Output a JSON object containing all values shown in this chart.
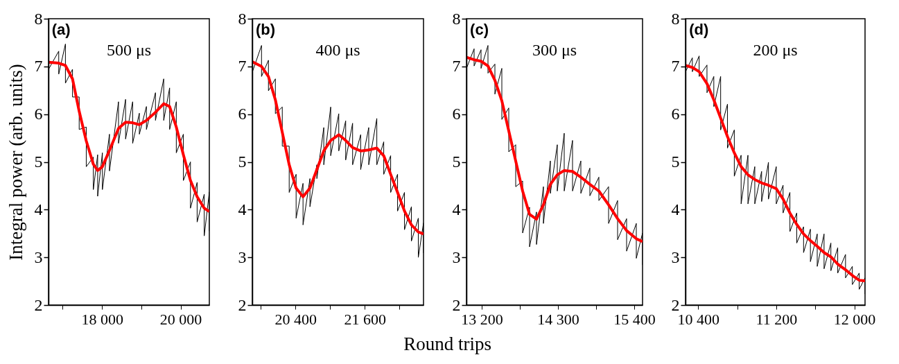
{
  "chart_data": [
    {
      "type": "line",
      "ylabel": "Integral power (arb. units)",
      "annotations": [
        "(a)",
        "500 μs"
      ],
      "xlim": [
        16640,
        20730
      ],
      "ylim": [
        2,
        8
      ],
      "xticks": [
        {
          "value": 17000,
          "label": null
        },
        {
          "value": 18000,
          "label": "18 000"
        },
        {
          "value": 19000,
          "label": null
        },
        {
          "value": 20000,
          "label": "20 000"
        }
      ],
      "yticks": [
        2,
        3,
        4,
        5,
        6,
        7,
        8
      ],
      "series": [
        {
          "color": "#000000",
          "x": [
            16640,
            16640,
            16900,
            16900,
            17070,
            17070,
            17250,
            17250,
            17420,
            17420,
            17600,
            17600,
            17780,
            17780,
            17890,
            17890,
            18010,
            18010,
            18190,
            18190,
            18420,
            18420,
            18600,
            18600,
            18780,
            18780,
            18950,
            18950,
            19130,
            19130,
            19360,
            19360,
            19570,
            19570,
            19720,
            19720,
            19890,
            19890,
            20070,
            20070,
            20250,
            20250,
            20420,
            20420,
            20600,
            20600,
            20730,
            20730
          ],
          "values": [
            7.2,
            6.94,
            7.32,
            6.84,
            7.47,
            6.65,
            6.94,
            6.36,
            6.36,
            5.68,
            5.73,
            4.9,
            5.1,
            4.42,
            5.15,
            4.28,
            5.19,
            4.42,
            5.58,
            4.81,
            6.26,
            5.39,
            6.31,
            5.48,
            6.26,
            5.39,
            6.02,
            5.58,
            6.16,
            5.68,
            6.45,
            5.87,
            6.74,
            5.87,
            6.55,
            5.68,
            6.26,
            5.19,
            5.58,
            4.61,
            5.0,
            4.03,
            4.57,
            3.74,
            4.32,
            3.45,
            4.37,
            3.55
          ]
        },
        {
          "color": "#ff0000",
          "x": [
            16640,
            16900,
            17070,
            17250,
            17420,
            17600,
            17780,
            17890,
            18010,
            18190,
            18420,
            18600,
            18780,
            18950,
            19130,
            19360,
            19570,
            19720,
            19890,
            20070,
            20250,
            20420,
            20600,
            20730
          ],
          "values": [
            7.09,
            7.07,
            7.02,
            6.74,
            6.06,
            5.44,
            4.95,
            4.82,
            4.9,
            5.24,
            5.7,
            5.83,
            5.82,
            5.78,
            5.87,
            6.04,
            6.22,
            6.16,
            5.73,
            5.15,
            4.61,
            4.27,
            4.03,
            3.96
          ]
        }
      ]
    },
    {
      "type": "line",
      "xlabel": "Round trips",
      "annotations": [
        "(b)",
        "400 μs"
      ],
      "xlim": [
        19650,
        22620
      ],
      "ylim": [
        2,
        8
      ],
      "xticks": [
        {
          "value": 19800,
          "label": null
        },
        {
          "value": 20400,
          "label": "20 400"
        },
        {
          "value": 21000,
          "label": null
        },
        {
          "value": 21600,
          "label": "21 600"
        },
        {
          "value": 22200,
          "label": null
        }
      ],
      "yticks": [
        2,
        3,
        4,
        5,
        6,
        7,
        8
      ],
      "series": [
        {
          "color": "#000000",
          "x": [
            19650,
            19650,
            19810,
            19810,
            19930,
            19930,
            20050,
            20050,
            20170,
            20170,
            20290,
            20290,
            20410,
            20410,
            20530,
            20530,
            20650,
            20650,
            20770,
            20770,
            20890,
            20890,
            21010,
            21010,
            21150,
            21150,
            21270,
            21270,
            21390,
            21390,
            21530,
            21530,
            21670,
            21670,
            21810,
            21810,
            21930,
            21930,
            22050,
            22050,
            22170,
            22170,
            22290,
            22290,
            22410,
            22410,
            22530,
            22530,
            22620,
            22620
          ],
          "values": [
            7.3,
            6.88,
            7.44,
            6.79,
            7.13,
            6.49,
            6.74,
            6.01,
            6.15,
            5.33,
            5.33,
            4.36,
            4.74,
            3.82,
            4.55,
            3.68,
            4.65,
            4.06,
            4.94,
            4.65,
            5.72,
            4.94,
            6.15,
            5.13,
            6.01,
            5.23,
            5.86,
            5.04,
            5.81,
            4.94,
            5.57,
            4.84,
            5.72,
            4.94,
            5.91,
            4.94,
            5.42,
            4.74,
            5.13,
            4.36,
            4.74,
            3.97,
            4.36,
            3.58,
            4.06,
            3.34,
            3.82,
            3.0,
            3.72,
            3.09
          ]
        },
        {
          "color": "#ff0000",
          "x": [
            19650,
            19810,
            19930,
            20050,
            20170,
            20290,
            20410,
            20530,
            20650,
            20770,
            20890,
            21010,
            21150,
            21270,
            21390,
            21530,
            21670,
            21810,
            21930,
            22050,
            22170,
            22290,
            22410,
            22530,
            22620
          ],
          "values": [
            7.1,
            7.0,
            6.79,
            6.3,
            5.62,
            4.94,
            4.45,
            4.27,
            4.45,
            4.84,
            5.23,
            5.45,
            5.57,
            5.45,
            5.3,
            5.23,
            5.25,
            5.29,
            5.13,
            4.74,
            4.36,
            3.97,
            3.68,
            3.53,
            3.49
          ]
        }
      ]
    },
    {
      "type": "line",
      "annotations": [
        "(c)",
        "300 μs"
      ],
      "xlim": [
        12980,
        15520
      ],
      "ylim": [
        2,
        8
      ],
      "xticks": [
        {
          "value": 13200,
          "label": "13 200"
        },
        {
          "value": 13750,
          "label": null
        },
        {
          "value": 14300,
          "label": "14 300"
        },
        {
          "value": 14850,
          "label": null
        },
        {
          "value": 15400,
          "label": "15 400"
        }
      ],
      "yticks": [
        2,
        3,
        4,
        5,
        6,
        7,
        8
      ],
      "series": [
        {
          "color": "#000000",
          "x": [
            12980,
            12980,
            13090,
            13090,
            13190,
            13190,
            13290,
            13290,
            13390,
            13390,
            13490,
            13490,
            13590,
            13590,
            13690,
            13690,
            13790,
            13790,
            13890,
            13890,
            13990,
            13990,
            14090,
            14090,
            14190,
            14190,
            14290,
            14290,
            14390,
            14390,
            14510,
            14510,
            14630,
            14630,
            14760,
            14760,
            14890,
            14890,
            15030,
            15030,
            15160,
            15160,
            15290,
            15290,
            15430,
            15430,
            15520,
            15520
          ],
          "values": [
            7.27,
            6.96,
            7.37,
            7.01,
            7.35,
            6.96,
            7.44,
            6.86,
            7.05,
            6.42,
            6.96,
            5.89,
            6.13,
            5.21,
            5.36,
            4.48,
            4.6,
            3.51,
            4.05,
            3.22,
            3.95,
            3.27,
            4.48,
            3.71,
            5.02,
            4.34,
            5.36,
            4.39,
            5.6,
            4.39,
            5.45,
            4.39,
            5.02,
            4.34,
            4.87,
            4.29,
            4.68,
            4.19,
            4.48,
            3.71,
            4.19,
            3.37,
            3.81,
            3.13,
            3.71,
            2.98,
            3.51,
            2.84
          ]
        },
        {
          "color": "#ff0000",
          "x": [
            12980,
            13090,
            13190,
            13290,
            13390,
            13490,
            13590,
            13690,
            13790,
            13890,
            13990,
            14090,
            14190,
            14290,
            14390,
            14510,
            14630,
            14760,
            14890,
            15030,
            15160,
            15290,
            15430,
            15520
          ],
          "values": [
            7.19,
            7.14,
            7.11,
            7.01,
            6.71,
            6.28,
            5.65,
            5.02,
            4.39,
            3.9,
            3.8,
            4.1,
            4.53,
            4.73,
            4.82,
            4.8,
            4.68,
            4.53,
            4.39,
            4.1,
            3.81,
            3.56,
            3.39,
            3.33
          ]
        }
      ]
    },
    {
      "type": "line",
      "annotations": [
        "(d)",
        "200 μs"
      ],
      "xlim": [
        10270,
        12110
      ],
      "ylim": [
        2,
        8
      ],
      "xticks": [
        {
          "value": 10400,
          "label": "10 400"
        },
        {
          "value": 10800,
          "label": null
        },
        {
          "value": 11200,
          "label": "11 200"
        },
        {
          "value": 11600,
          "label": null
        },
        {
          "value": 12000,
          "label": "12 000"
        }
      ],
      "yticks": [
        2,
        3,
        4,
        5,
        6,
        7,
        8
      ],
      "series": [
        {
          "color": "#000000",
          "x": [
            10270,
            10270,
            10340,
            10340,
            10410,
            10410,
            10490,
            10490,
            10560,
            10560,
            10630,
            10630,
            10700,
            10700,
            10770,
            10770,
            10840,
            10840,
            10910,
            10910,
            10980,
            10980,
            11050,
            11050,
            11120,
            11120,
            11200,
            11200,
            11270,
            11270,
            11340,
            11340,
            11410,
            11410,
            11480,
            11480,
            11550,
            11550,
            11620,
            11620,
            11690,
            11690,
            11760,
            11760,
            11830,
            11830,
            11910,
            11910,
            11980,
            11980,
            12050,
            12050,
            12110,
            12110
          ],
          "values": [
            7.13,
            6.89,
            7.18,
            6.89,
            7.22,
            6.79,
            7.03,
            6.45,
            6.79,
            6.16,
            6.79,
            5.67,
            6.21,
            5.29,
            5.67,
            4.7,
            5.14,
            4.12,
            5.14,
            4.12,
            4.9,
            4.12,
            4.8,
            4.17,
            4.99,
            4.22,
            4.9,
            4.12,
            4.51,
            3.93,
            4.36,
            3.54,
            3.93,
            3.3,
            3.64,
            3.1,
            3.59,
            2.91,
            3.49,
            2.81,
            3.49,
            2.76,
            3.3,
            2.72,
            3.2,
            2.67,
            3.06,
            2.57,
            2.81,
            2.43,
            2.67,
            2.33,
            2.57,
            2.23
          ]
        },
        {
          "color": "#ff0000",
          "x": [
            10270,
            10340,
            10410,
            10490,
            10560,
            10630,
            10700,
            10770,
            10840,
            10910,
            10980,
            11050,
            11120,
            11200,
            11270,
            11340,
            11410,
            11480,
            11550,
            11620,
            11690,
            11760,
            11830,
            11910,
            11980,
            12050,
            12110
          ],
          "values": [
            7.02,
            6.98,
            6.89,
            6.64,
            6.3,
            5.92,
            5.53,
            5.19,
            4.9,
            4.73,
            4.63,
            4.56,
            4.51,
            4.44,
            4.22,
            3.93,
            3.69,
            3.49,
            3.35,
            3.23,
            3.1,
            3.01,
            2.86,
            2.74,
            2.62,
            2.52,
            2.51
          ]
        }
      ]
    }
  ]
}
